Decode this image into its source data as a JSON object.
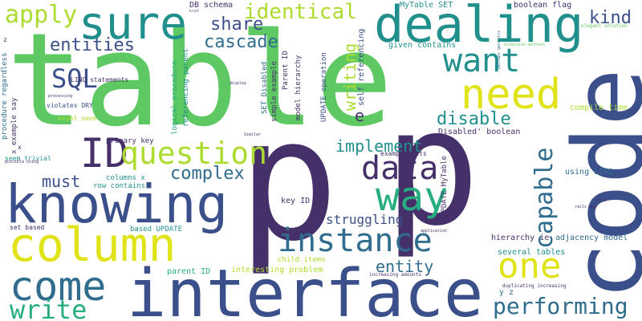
{
  "palette": {
    "background": "#ffffff",
    "dark_purple": "#46306a",
    "indigo": "#3b4f8a",
    "blue": "#2f6c8e",
    "teal": "#21908d",
    "sea_green": "#27ad81",
    "green": "#5ec962",
    "lime": "#addc30",
    "yellow": "#dfe318"
  },
  "words": {
    "table": "table",
    "p1": "p",
    "p2": "p",
    "code": "code",
    "interface": "interface",
    "knowing": "knowing",
    "column": "column",
    "dealing": "dealing",
    "sure": "sure",
    "come": "come",
    "way": "way",
    "ID": "ID",
    "question": "question",
    "need": "need",
    "want": "want",
    "instance": "instance",
    "one": "one",
    "data": "data",
    "write": "write",
    "performing": "performing",
    "capable": "capable",
    "complex": "complex",
    "apply": "apply",
    "identical": "identical",
    "share": "share",
    "cascade": "cascade",
    "SQL": "SQL",
    "entities": "entities",
    "implement": "implement",
    "disable": "disable",
    "kind": "kind",
    "must": "must",
    "entity": "entity",
    "struggling": "struggling",
    "writing": "writing",
    "e": "e",
    "self_referencing": "self referencing",
    "given_contains": "given contains",
    "mytable_set": "MyTable SET",
    "boolean_flag": "boolean flag",
    "db_schema": "DB schema",
    "linq_statements": "LINQ statements",
    "logical_procedure": "logical procedure",
    "referencing_parent": "referencing parent",
    "set_disabled": "SET Disabled",
    "parent_id_top": "Parent ID",
    "simple_example": "simple example",
    "model_hierarchy": "model hierarchy",
    "update_operation": "UPDATE operation",
    "disabled_boolean": "Disabled' boolean",
    "compile_time": "compile time",
    "using_linq": "using LINQ",
    "primary_key": "primary key",
    "columns_x": "columns x",
    "row_contains": "row contains",
    "key_id": "key ID",
    "update_mytable": "UPDATE MyTable",
    "example_gets": "example gets",
    "procedure_regardless": "procedure regardless",
    "x_example_say": "x example say",
    "violates_dry": "violates DRY",
    "might_seem": "might seem",
    "seem_trivial": "seem trivial",
    "set_based": "set based",
    "based_update": "based UPDATE",
    "interesting_problem": "interesting problem",
    "child_items": "child items",
    "several_tables": "several tables",
    "hierarchy_ie": "hierarchy ie",
    "adjacency_model": "adjacency model",
    "parent_id_bottom": "parent ID",
    "y_z": "y z",
    "duplicating_increasing": "duplicating increasing",
    "increasing_amounts": "increasing amounts",
    "perhaps_generics": "perhaps generics",
    "elegant_solution": "elegant solution",
    "extension_methods": "extension methods",
    "rails_app": "rails app",
    "application": "application",
    "cons": "cons",
    "display": "display",
    "similar": "Similar",
    "processing": "processing",
    "possible_using": "possible using",
    "tiny_brief": "brief",
    "tiny_z": "z",
    "tiny_x": "x"
  }
}
